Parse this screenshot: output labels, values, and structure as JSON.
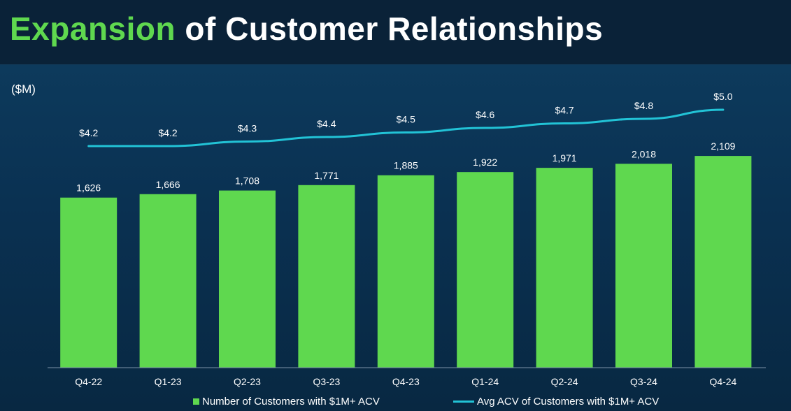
{
  "title": {
    "accent": "Expansion",
    "rest": " of Customer Relationships"
  },
  "unit_label": "($M)",
  "colors": {
    "bar": "#5fd84f",
    "line": "#22c3d6",
    "title_accent": "#5fd84f",
    "background": "#0b2a45"
  },
  "legend": {
    "bars": "Number of Customers with $1M+ ACV",
    "line": "Avg ACV of Customers with $1M+ ACV"
  },
  "chart_data": {
    "type": "bar",
    "categories": [
      "Q4-22",
      "Q1-23",
      "Q2-23",
      "Q3-23",
      "Q4-23",
      "Q1-24",
      "Q2-24",
      "Q3-24",
      "Q4-24"
    ],
    "series": [
      {
        "name": "Number of Customers with $1M+ ACV",
        "type": "bar",
        "values": [
          1626,
          1666,
          1708,
          1771,
          1885,
          1922,
          1971,
          2018,
          2109
        ],
        "labels": [
          "1,626",
          "1,666",
          "1,708",
          "1,771",
          "1,885",
          "1,922",
          "1,971",
          "2,018",
          "2,109"
        ]
      },
      {
        "name": "Avg ACV of Customers with $1M+ ACV",
        "type": "line",
        "values": [
          4.2,
          4.2,
          4.3,
          4.4,
          4.5,
          4.6,
          4.7,
          4.8,
          5.0
        ],
        "labels": [
          "$4.2",
          "$4.2",
          "$4.3",
          "$4.4",
          "$4.5",
          "$4.6",
          "$4.7",
          "$4.8",
          "$5.0"
        ]
      }
    ],
    "ylabel": "($M)",
    "legend_position": "bottom",
    "grid": false
  }
}
